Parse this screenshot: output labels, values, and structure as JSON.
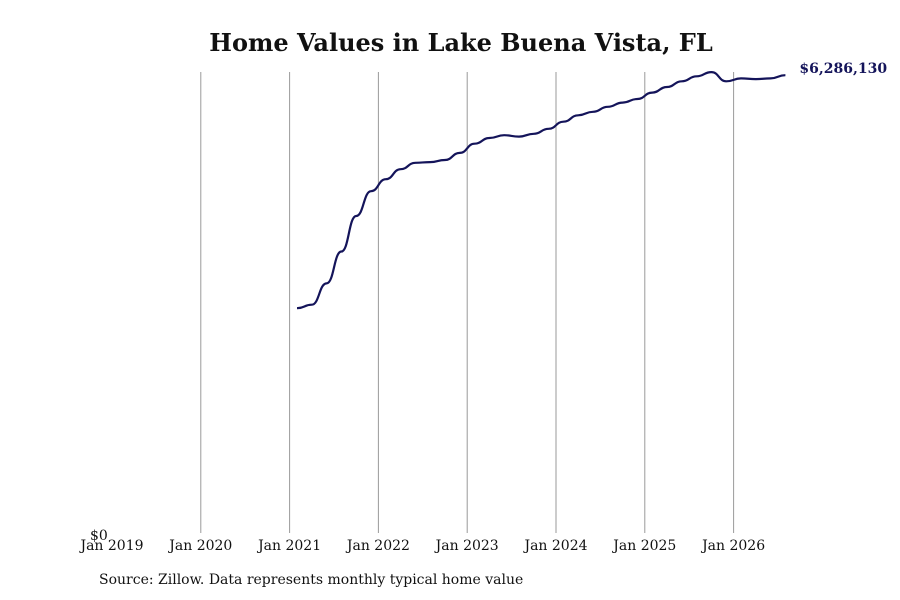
{
  "chart_data": {
    "type": "line",
    "title": "Home Values in Lake Buena Vista, FL",
    "source": "Source: Zillow. Data represents monthly typical home value",
    "x_ticks": [
      "Jan 2019",
      "Jan 2020",
      "Jan 2021",
      "Jan 2022",
      "Jan 2023",
      "Jan 2024",
      "Jan 2025",
      "Jan 2026"
    ],
    "y_tick_label": "$0",
    "end_label": "$6,286,130",
    "grid": true,
    "line_color": "#14145a",
    "ylim": [
      0,
      6500000
    ],
    "series": [
      {
        "x": [
          "2021-02",
          "2021-04",
          "2021-06",
          "2021-08",
          "2021-10",
          "2021-12",
          "2022-02",
          "2022-04",
          "2022-06",
          "2022-08",
          "2022-10",
          "2022-12",
          "2023-02",
          "2023-04",
          "2023-06",
          "2023-08",
          "2023-10",
          "2023-12",
          "2024-02",
          "2024-04",
          "2024-06",
          "2024-08",
          "2024-10",
          "2024-12",
          "2025-02",
          "2025-04",
          "2025-06",
          "2025-08",
          "2025-10",
          "2025-12",
          "2026-02",
          "2026-04",
          "2026-06",
          "2026-08"
        ],
        "values": [
          3000000,
          3050000,
          3350000,
          3800000,
          4300000,
          4650000,
          4820000,
          4960000,
          5050000,
          5060000,
          5090000,
          5190000,
          5320000,
          5400000,
          5440000,
          5420000,
          5460000,
          5530000,
          5630000,
          5720000,
          5770000,
          5840000,
          5900000,
          5950000,
          6040000,
          6120000,
          6200000,
          6270000,
          6330000,
          6200000,
          6240000,
          6230000,
          6240000,
          6286130
        ]
      }
    ]
  }
}
